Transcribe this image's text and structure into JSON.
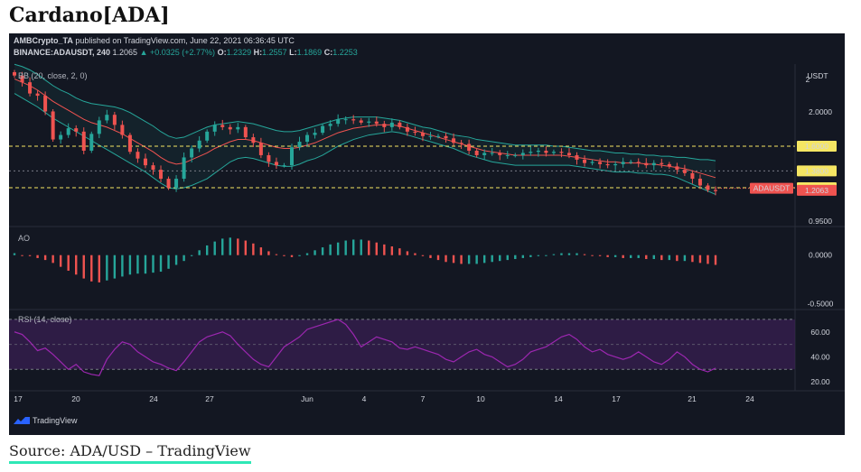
{
  "page_title": "Cardano[ADA]",
  "caption": "Source: ADA/USD – TradingView",
  "header": {
    "publisher": "AMBCrypto_TA",
    "published_text": "published on TradingView.com, June 22, 2021 06:36:45 UTC",
    "symbol": "BINANCE:ADAUSDT, 240",
    "last": "1.2065",
    "change": "▲ +0.0325 (+2.77%)",
    "o_label": "O:",
    "o": "1.2329",
    "h_label": "H:",
    "h": "1.2557",
    "l_label": "L:",
    "l": "1.1869",
    "c_label": "C:",
    "c": "1.2253"
  },
  "branding": "TradingView",
  "colors": {
    "up": "#26a69a",
    "down": "#ef5350",
    "bb_band": "#26a69a",
    "bb_basis": "#ef5350",
    "level_line": "#f5e663",
    "rsi_line": "#9c27b0",
    "rsi_fill": "#3a1f54"
  },
  "chart_data": [
    {
      "type": "candlestick",
      "panel": "price",
      "title": "BB (20, close, 2, 0)",
      "axis_unit": "USDT",
      "x_ticks": [
        "17",
        "20",
        "24",
        "27",
        "Jun",
        "4",
        "7",
        "10",
        "14",
        "17",
        "21",
        "24"
      ],
      "y_ticks": [
        "2",
        "2.0000",
        "0.9500"
      ],
      "horizontal_levels": [
        "1.6000",
        "1.3800",
        "1.2300",
        "1.2063"
      ],
      "price_label": {
        "name": "ADAUSDT",
        "value": "1.2253"
      },
      "close_series": [
        2.23,
        2.17,
        2.07,
        2.05,
        1.91,
        1.66,
        1.7,
        1.76,
        1.73,
        1.56,
        1.71,
        1.83,
        1.88,
        1.79,
        1.7,
        1.55,
        1.49,
        1.43,
        1.39,
        1.31,
        1.23,
        1.31,
        1.5,
        1.58,
        1.65,
        1.73,
        1.79,
        1.77,
        1.75,
        1.77,
        1.68,
        1.63,
        1.52,
        1.46,
        1.43,
        1.43,
        1.59,
        1.64,
        1.7,
        1.72,
        1.78,
        1.8,
        1.84,
        1.84,
        1.83,
        1.81,
        1.82,
        1.8,
        1.77,
        1.81,
        1.77,
        1.73,
        1.72,
        1.69,
        1.69,
        1.69,
        1.67,
        1.63,
        1.62,
        1.56,
        1.52,
        1.54,
        1.54,
        1.52,
        1.52,
        1.52,
        1.54,
        1.55,
        1.56,
        1.54,
        1.55,
        1.54,
        1.52,
        1.48,
        1.45,
        1.46,
        1.44,
        1.43,
        1.44,
        1.46,
        1.46,
        1.45,
        1.43,
        1.45,
        1.44,
        1.42,
        1.39,
        1.36,
        1.31,
        1.25,
        1.21,
        1.2
      ],
      "bb_upper": [
        2.33,
        2.31,
        2.28,
        2.24,
        2.19,
        2.14,
        2.1,
        2.07,
        2.03,
        2.0,
        1.98,
        1.97,
        1.96,
        1.95,
        1.93,
        1.9,
        1.86,
        1.82,
        1.78,
        1.73,
        1.69,
        1.67,
        1.68,
        1.71,
        1.74,
        1.77,
        1.79,
        1.8,
        1.81,
        1.82,
        1.81,
        1.8,
        1.78,
        1.76,
        1.74,
        1.73,
        1.73,
        1.74,
        1.76,
        1.78,
        1.8,
        1.82,
        1.84,
        1.85,
        1.86,
        1.86,
        1.86,
        1.86,
        1.85,
        1.84,
        1.83,
        1.81,
        1.79,
        1.77,
        1.76,
        1.74,
        1.72,
        1.7,
        1.69,
        1.68,
        1.66,
        1.65,
        1.64,
        1.63,
        1.62,
        1.61,
        1.61,
        1.61,
        1.61,
        1.61,
        1.6,
        1.6,
        1.59,
        1.58,
        1.57,
        1.56,
        1.56,
        1.55,
        1.54,
        1.54,
        1.53,
        1.53,
        1.52,
        1.52,
        1.51,
        1.51,
        1.5,
        1.5,
        1.49,
        1.48,
        1.48,
        1.47
      ],
      "bb_basis": [
        2.2,
        2.17,
        2.14,
        2.1,
        2.05,
        2.0,
        1.96,
        1.92,
        1.88,
        1.84,
        1.81,
        1.79,
        1.77,
        1.74,
        1.71,
        1.67,
        1.63,
        1.59,
        1.55,
        1.5,
        1.46,
        1.44,
        1.45,
        1.48,
        1.51,
        1.54,
        1.58,
        1.61,
        1.64,
        1.66,
        1.66,
        1.65,
        1.63,
        1.61,
        1.59,
        1.58,
        1.58,
        1.59,
        1.61,
        1.63,
        1.66,
        1.69,
        1.72,
        1.74,
        1.76,
        1.77,
        1.78,
        1.79,
        1.79,
        1.79,
        1.78,
        1.76,
        1.74,
        1.72,
        1.7,
        1.68,
        1.66,
        1.64,
        1.62,
        1.6,
        1.58,
        1.56,
        1.55,
        1.54,
        1.53,
        1.52,
        1.52,
        1.52,
        1.52,
        1.52,
        1.52,
        1.52,
        1.51,
        1.5,
        1.49,
        1.48,
        1.47,
        1.46,
        1.46,
        1.45,
        1.45,
        1.45,
        1.44,
        1.44,
        1.43,
        1.42,
        1.41,
        1.4,
        1.38,
        1.36,
        1.34,
        1.32
      ],
      "bb_lower": [
        2.07,
        2.03,
        1.99,
        1.95,
        1.9,
        1.85,
        1.81,
        1.77,
        1.73,
        1.69,
        1.65,
        1.61,
        1.57,
        1.53,
        1.49,
        1.45,
        1.41,
        1.37,
        1.32,
        1.27,
        1.23,
        1.22,
        1.23,
        1.25,
        1.28,
        1.31,
        1.36,
        1.41,
        1.46,
        1.49,
        1.5,
        1.49,
        1.47,
        1.45,
        1.43,
        1.42,
        1.42,
        1.44,
        1.47,
        1.49,
        1.52,
        1.56,
        1.6,
        1.63,
        1.66,
        1.68,
        1.7,
        1.71,
        1.72,
        1.73,
        1.72,
        1.7,
        1.68,
        1.66,
        1.64,
        1.62,
        1.6,
        1.58,
        1.55,
        1.52,
        1.5,
        1.48,
        1.46,
        1.45,
        1.44,
        1.43,
        1.43,
        1.43,
        1.43,
        1.43,
        1.43,
        1.43,
        1.43,
        1.42,
        1.41,
        1.4,
        1.39,
        1.38,
        1.37,
        1.37,
        1.37,
        1.36,
        1.36,
        1.35,
        1.35,
        1.34,
        1.32,
        1.29,
        1.26,
        1.23,
        1.2,
        1.17
      ],
      "ylim": [
        0.9,
        2.3
      ]
    },
    {
      "type": "histogram",
      "panel": "ao",
      "title": "AO",
      "y_ticks": [
        "0.0000",
        "-0.5000"
      ],
      "values": [
        0.02,
        0.0,
        -0.01,
        -0.03,
        -0.05,
        -0.08,
        -0.12,
        -0.16,
        -0.2,
        -0.24,
        -0.27,
        -0.28,
        -0.26,
        -0.24,
        -0.22,
        -0.2,
        -0.19,
        -0.19,
        -0.18,
        -0.17,
        -0.14,
        -0.1,
        -0.06,
        -0.01,
        0.05,
        0.1,
        0.14,
        0.17,
        0.18,
        0.17,
        0.15,
        0.12,
        0.08,
        0.04,
        0.01,
        -0.01,
        -0.02,
        -0.01,
        0.02,
        0.05,
        0.08,
        0.11,
        0.13,
        0.15,
        0.16,
        0.16,
        0.15,
        0.13,
        0.11,
        0.09,
        0.07,
        0.04,
        0.02,
        -0.01,
        -0.03,
        -0.05,
        -0.07,
        -0.08,
        -0.09,
        -0.09,
        -0.09,
        -0.08,
        -0.07,
        -0.06,
        -0.05,
        -0.04,
        -0.03,
        -0.02,
        -0.01,
        0.0,
        0.01,
        0.02,
        0.02,
        0.02,
        0.01,
        0.0,
        -0.01,
        -0.02,
        -0.02,
        -0.03,
        -0.03,
        -0.03,
        -0.04,
        -0.04,
        -0.05,
        -0.05,
        -0.06,
        -0.06,
        -0.07,
        -0.08,
        -0.09,
        -0.1
      ],
      "ylim": [
        -0.55,
        0.22
      ]
    },
    {
      "type": "line",
      "panel": "rsi",
      "title": "RSI (14, close)",
      "y_ticks": [
        "60.00",
        "40.00",
        "20.00"
      ],
      "bands": [
        70,
        30
      ],
      "midline": 50,
      "values": [
        60,
        58,
        52,
        45,
        47,
        42,
        36,
        30,
        34,
        28,
        26,
        25,
        38,
        46,
        52,
        50,
        44,
        40,
        36,
        34,
        31,
        29,
        36,
        44,
        52,
        56,
        58,
        60,
        57,
        50,
        44,
        38,
        34,
        32,
        40,
        48,
        52,
        56,
        62,
        64,
        66,
        68,
        70,
        66,
        58,
        48,
        52,
        56,
        54,
        52,
        47,
        46,
        48,
        46,
        44,
        42,
        38,
        36,
        40,
        44,
        46,
        42,
        40,
        36,
        32,
        34,
        38,
        44,
        46,
        48,
        52,
        56,
        58,
        54,
        48,
        44,
        46,
        42,
        40,
        38,
        40,
        44,
        40,
        36,
        34,
        38,
        44,
        40,
        34,
        30,
        28,
        31
      ],
      "ylim": [
        15,
        75
      ]
    }
  ]
}
